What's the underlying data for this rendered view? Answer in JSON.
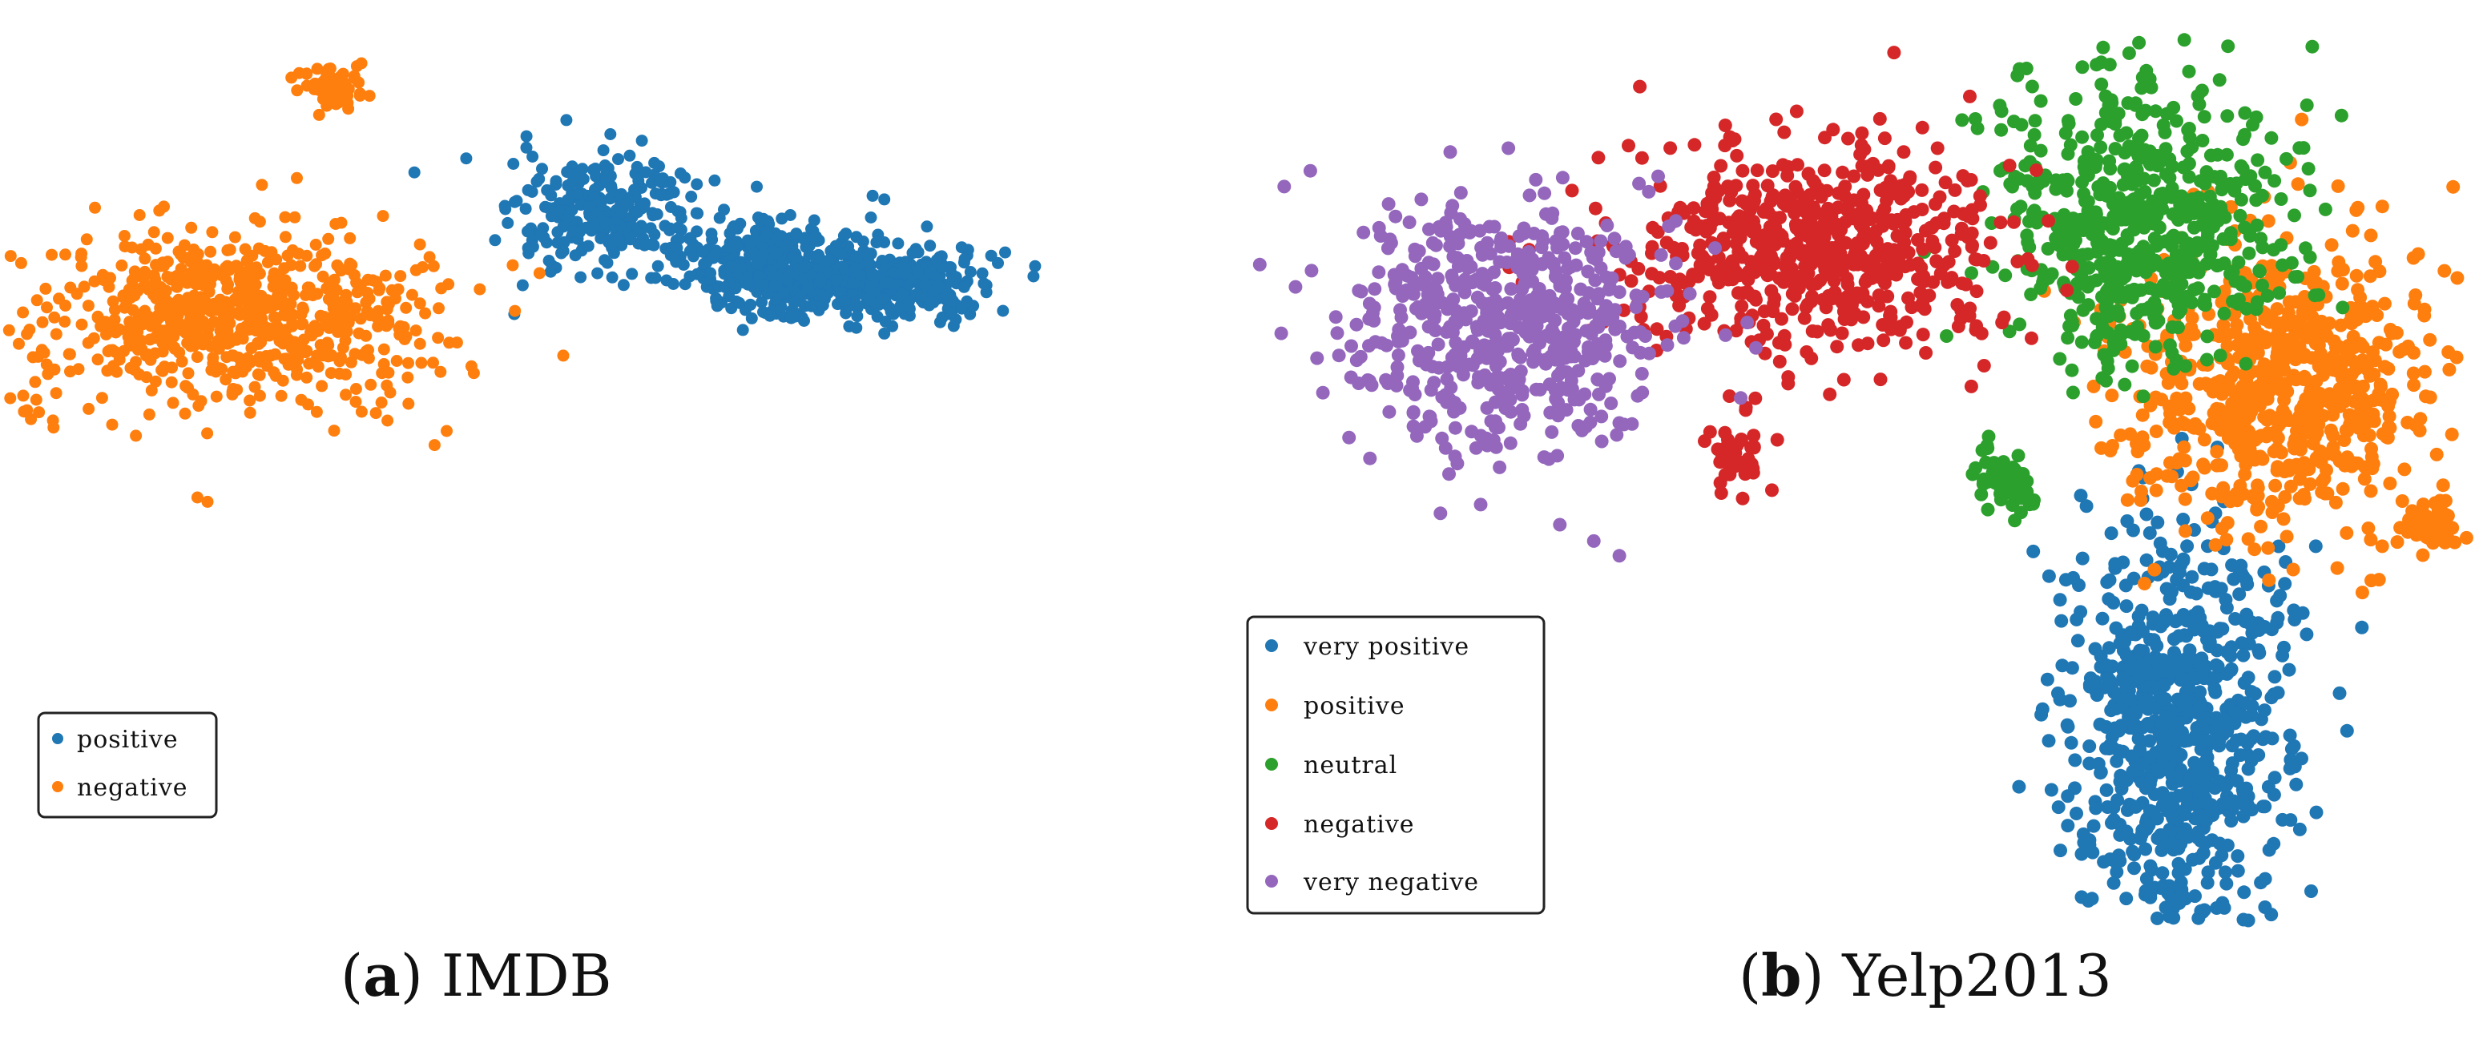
{
  "colors": {
    "very_positive": "#1f77b4",
    "positive": "#ff7f0e",
    "neutral": "#2ca02c",
    "negative": "#d62728",
    "very_negative": "#9467bd"
  },
  "chart_data": [
    {
      "type": "scatter",
      "caption_label": "a",
      "caption_text": "IMDB",
      "legend_placement": "bottom-left",
      "grid": false,
      "axes_visible": false,
      "legend": [
        "positive",
        "negative"
      ],
      "series": [
        {
          "name": "positive",
          "color": "#1f77b4",
          "clusters": [
            {
              "cx": 0.22,
              "cy": 0.72,
              "sx": 0.11,
              "sy": 0.09,
              "n": 260
            },
            {
              "cx": 0.58,
              "cy": 0.58,
              "sx": 0.1,
              "sy": 0.07,
              "n": 360
            },
            {
              "cx": 0.85,
              "cy": 0.54,
              "sx": 0.1,
              "sy": 0.05,
              "n": 320
            }
          ]
        },
        {
          "name": "negative",
          "color": "#ff7f0e",
          "clusters": [
            {
              "cx": -0.62,
              "cy": 0.45,
              "sx": 0.22,
              "sy": 0.13,
              "n": 720
            },
            {
              "cx": -0.4,
              "cy": 1.1,
              "sx": 0.04,
              "sy": 0.03,
              "n": 70
            },
            {
              "cx": -1.1,
              "cy": 0.2,
              "sx": 0.06,
              "sy": 0.04,
              "n": 20
            }
          ]
        }
      ]
    },
    {
      "type": "scatter",
      "caption_label": "b",
      "caption_text": "Yelp2013",
      "legend_placement": "bottom-left",
      "grid": false,
      "axes_visible": false,
      "legend": [
        "very positive",
        "positive",
        "neutral",
        "negative",
        "very negative"
      ],
      "series": [
        {
          "name": "very positive",
          "color": "#1f77b4",
          "clusters": [
            {
              "cx": 0.62,
              "cy": -0.55,
              "sx": 0.1,
              "sy": 0.22,
              "n": 760
            },
            {
              "cx": 0.6,
              "cy": -0.92,
              "sx": 0.02,
              "sy": 0.015,
              "n": 25
            }
          ]
        },
        {
          "name": "positive",
          "color": "#ff7f0e",
          "clusters": [
            {
              "cx": 0.8,
              "cy": 0.2,
              "sx": 0.14,
              "sy": 0.16,
              "n": 700
            },
            {
              "cx": 1.08,
              "cy": -0.1,
              "sx": 0.025,
              "sy": 0.03,
              "n": 60
            }
          ]
        },
        {
          "name": "neutral",
          "color": "#2ca02c",
          "clusters": [
            {
              "cx": 0.55,
              "cy": 0.58,
              "sx": 0.13,
              "sy": 0.16,
              "n": 620
            },
            {
              "cx": 0.3,
              "cy": 0.0,
              "sx": 0.03,
              "sy": 0.04,
              "n": 60
            }
          ]
        },
        {
          "name": "negative",
          "color": "#d62728",
          "clusters": [
            {
              "cx": -0.05,
              "cy": 0.52,
              "sx": 0.18,
              "sy": 0.12,
              "n": 620
            },
            {
              "cx": -0.2,
              "cy": 0.05,
              "sx": 0.025,
              "sy": 0.04,
              "n": 40
            }
          ]
        },
        {
          "name": "very negative",
          "color": "#9467bd",
          "clusters": [
            {
              "cx": -0.62,
              "cy": 0.35,
              "sx": 0.15,
              "sy": 0.14,
              "n": 580
            }
          ]
        }
      ]
    }
  ]
}
